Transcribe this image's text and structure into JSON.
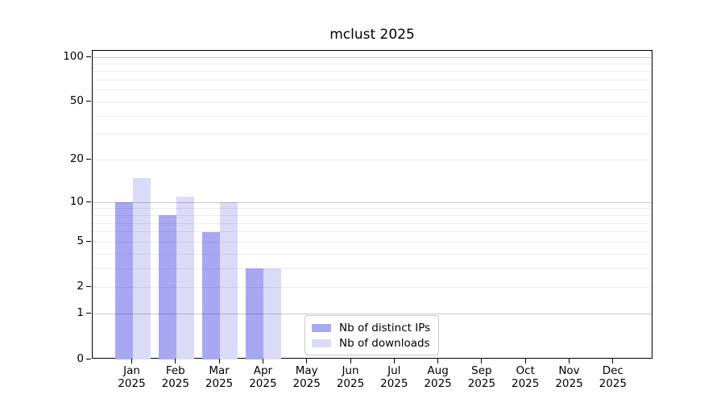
{
  "title": "mclust 2025",
  "chart_data": {
    "type": "bar",
    "title": "mclust 2025",
    "categories": [
      "Jan",
      "Feb",
      "Mar",
      "Apr",
      "May",
      "Jun",
      "Jul",
      "Aug",
      "Sep",
      "Oct",
      "Nov",
      "Dec"
    ],
    "category_year": "2025",
    "series": [
      {
        "name": "Nb of distinct IPs",
        "color": "#a8a8f2",
        "values": [
          10,
          8,
          6,
          3,
          0,
          0,
          0,
          0,
          0,
          0,
          0,
          0
        ]
      },
      {
        "name": "Nb of downloads",
        "color": "#dbdbf8",
        "values": [
          15,
          11,
          10,
          3,
          0,
          0,
          0,
          0,
          0,
          0,
          0,
          0
        ]
      }
    ],
    "y_scale": "log1p",
    "y_ticks": [
      0,
      1,
      2,
      5,
      10,
      20,
      50,
      100
    ],
    "y_major_gridlines": [
      1,
      10,
      100
    ],
    "y_minor_gridlines": [
      2,
      3,
      4,
      5,
      6,
      7,
      8,
      9,
      20,
      30,
      40,
      50,
      60,
      70,
      80,
      90
    ],
    "ylim": [
      0,
      110
    ],
    "xlabel": "",
    "ylabel": "",
    "grid": "on",
    "legend_position": "inside lower-center-left"
  },
  "colors": {
    "bar_distinct_ips": "#a8a8f2",
    "bar_downloads": "#dbdbf8",
    "grid_major": "#c9c9c9",
    "grid_minor": "#ececec",
    "axis": "#000000",
    "legend_border": "#cbcbcb",
    "background": "#ffffff"
  },
  "legend": {
    "items": [
      "Nb of distinct IPs",
      "Nb of downloads"
    ]
  }
}
